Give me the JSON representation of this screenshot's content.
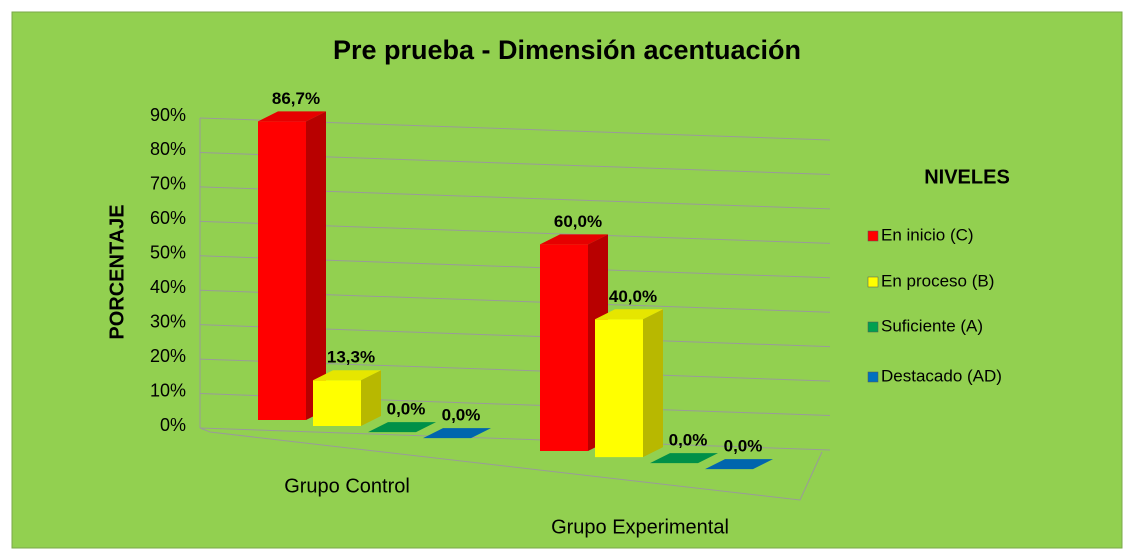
{
  "chart_data": {
    "type": "bar3d",
    "title": "Pre prueba - Dimensión acentuación",
    "y_label": "PORCENTAJE",
    "legend_title": "NIVELES",
    "legend": "right",
    "categories": [
      "Grupo Control",
      "Grupo Experimental"
    ],
    "series": [
      {
        "name": "En inicio (C)",
        "color": "#ff0000",
        "values": [
          86.7,
          60.0
        ],
        "value_labels": [
          "86,7%",
          "60,0%"
        ]
      },
      {
        "name": "En proceso (B)",
        "color": "#ffff00",
        "values": [
          13.3,
          40.0
        ],
        "value_labels": [
          "13,3%",
          "40,0%"
        ]
      },
      {
        "name": "Suficiente (A)",
        "color": "#00a050",
        "values": [
          0.0,
          0.0
        ],
        "value_labels": [
          "0,0%",
          "0,0%"
        ]
      },
      {
        "name": "Destacado (AD)",
        "color": "#0070c0",
        "values": [
          0.0,
          0.0
        ],
        "value_labels": [
          "0,0%",
          "0,0%"
        ]
      }
    ],
    "ylim": [
      0,
      90
    ],
    "yticks": [
      {
        "value": 0,
        "label": "0%"
      },
      {
        "value": 10,
        "label": "10%"
      },
      {
        "value": 20,
        "label": "20%"
      },
      {
        "value": 30,
        "label": "30%"
      },
      {
        "value": 40,
        "label": "40%"
      },
      {
        "value": 50,
        "label": "50%"
      },
      {
        "value": 60,
        "label": "60%"
      },
      {
        "value": 70,
        "label": "70%"
      },
      {
        "value": 80,
        "label": "80%"
      },
      {
        "value": 90,
        "label": "90%"
      }
    ],
    "grid": true
  }
}
